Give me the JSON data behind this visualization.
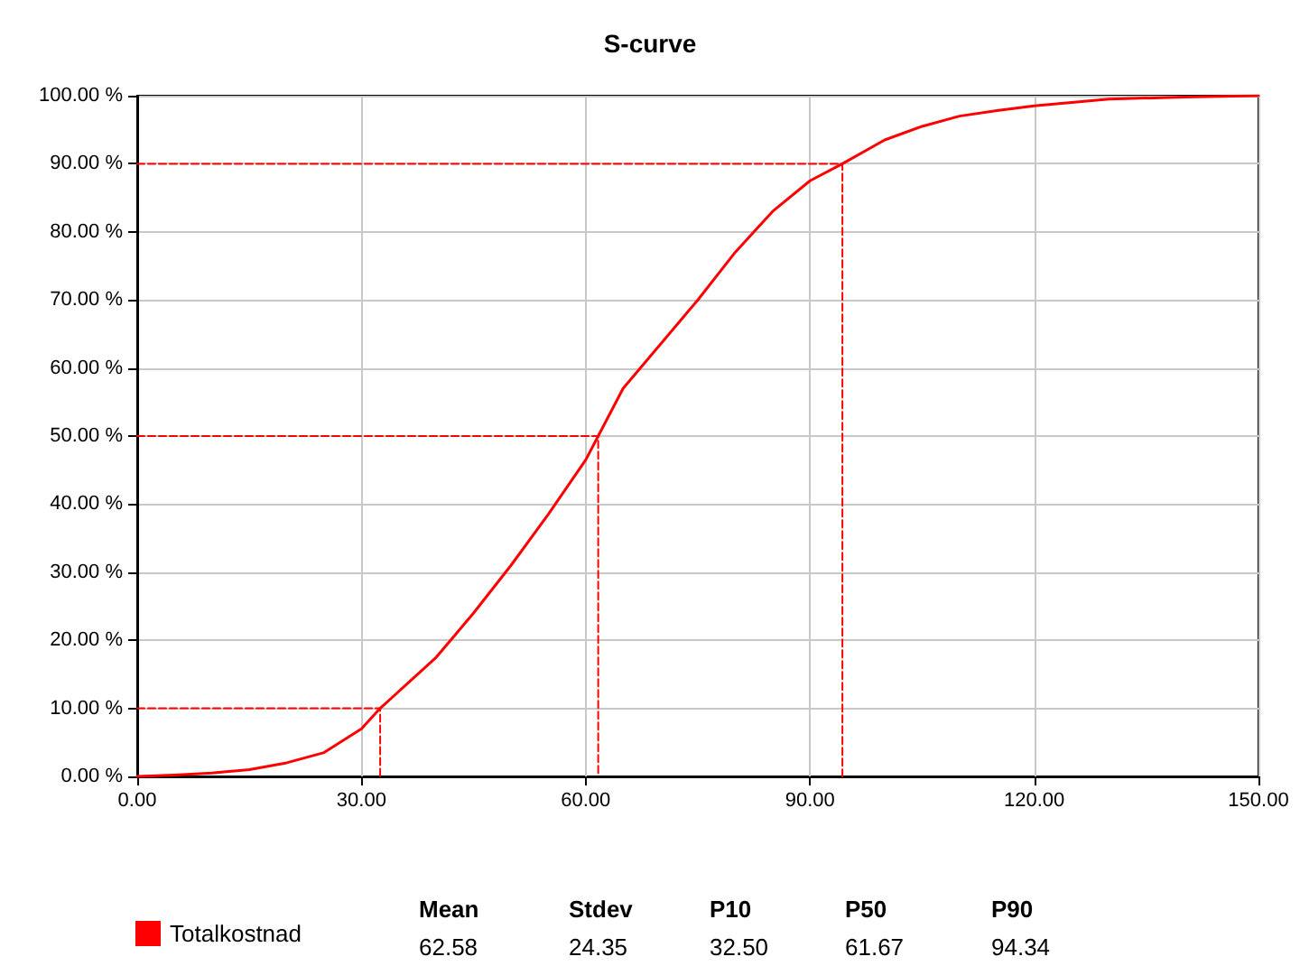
{
  "chart_data": {
    "type": "line",
    "title": "S-curve",
    "legend": "bottom",
    "grid": true,
    "marker": "none",
    "xlim": [
      0,
      150
    ],
    "ylim": [
      0,
      100
    ],
    "xticks": [
      {
        "value": 0,
        "label": "0.00"
      },
      {
        "value": 30,
        "label": "30.00"
      },
      {
        "value": 60,
        "label": "60.00"
      },
      {
        "value": 90,
        "label": "90.00"
      },
      {
        "value": 120,
        "label": "120.00"
      },
      {
        "value": 150,
        "label": "150.00"
      }
    ],
    "yticks": [
      {
        "value": 0,
        "label": "0.00 %"
      },
      {
        "value": 10,
        "label": "10.00 %"
      },
      {
        "value": 20,
        "label": "20.00 %"
      },
      {
        "value": 30,
        "label": "30.00 %"
      },
      {
        "value": 40,
        "label": "40.00 %"
      },
      {
        "value": 50,
        "label": "50.00 %"
      },
      {
        "value": 60,
        "label": "60.00 %"
      },
      {
        "value": 70,
        "label": "70.00 %"
      },
      {
        "value": 80,
        "label": "80.00 %"
      },
      {
        "value": 90,
        "label": "90.00 %"
      },
      {
        "value": 100,
        "label": "100.00 %"
      }
    ],
    "series": [
      {
        "name": "Totalkostnad",
        "color": "#ff0000",
        "line_style": "solid",
        "x": [
          0,
          5,
          10,
          15,
          20,
          25,
          30,
          32.5,
          35,
          40,
          45,
          50,
          55,
          60,
          61.67,
          65,
          70,
          75,
          80,
          85,
          90,
          94.34,
          100,
          105,
          110,
          115,
          120,
          125,
          130,
          140,
          150
        ],
        "values": [
          0,
          0.2,
          0.5,
          1,
          2,
          3.5,
          7,
          10,
          12.5,
          17.5,
          24,
          31,
          38.5,
          46.5,
          50,
          57,
          63.5,
          70,
          77,
          83,
          87.5,
          90,
          93.5,
          95.5,
          97,
          97.8,
          98.5,
          99,
          99.5,
          99.8,
          100
        ]
      },
      {
        "color": "#ff0000",
        "line_style": "dashed",
        "x": [
          0,
          32.5,
          32.5
        ],
        "values": [
          10,
          10,
          0
        ]
      },
      {
        "color": "#ff0000",
        "line_style": "dashed",
        "x": [
          0,
          61.67,
          61.67
        ],
        "values": [
          50,
          50,
          0
        ]
      },
      {
        "color": "#ff0000",
        "line_style": "dashed",
        "x": [
          0,
          94.34,
          94.34
        ],
        "values": [
          90,
          90,
          0
        ]
      }
    ],
    "annotations": [
      "Mean",
      "Stdev",
      "P10",
      "P50",
      "P90",
      "62.58",
      "24.35",
      "32.50",
      "61.67",
      "94.34"
    ]
  }
}
